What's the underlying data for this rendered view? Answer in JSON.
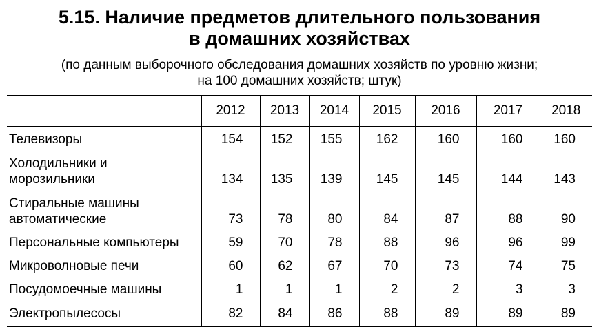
{
  "header": {
    "title_line1": "5.15. Наличие предметов длительного пользования",
    "title_line2": "в домашних хозяйствах",
    "subtitle_line1": "(по данным выборочного обследования домашних хозяйств по уровню жизни;",
    "subtitle_line2": "на 100 домашних хозяйств; штук)"
  },
  "table": {
    "columns": [
      "",
      "2012",
      "2013",
      "2014",
      "2015",
      "2016",
      "2017",
      "2018"
    ],
    "rows": [
      {
        "label": [
          "Телевизоры"
        ],
        "values": [
          "154",
          "152",
          "155",
          "162",
          "160",
          "160",
          "160"
        ]
      },
      {
        "label": [
          "Холодильники и",
          "морозильники"
        ],
        "values": [
          "134",
          "135",
          "139",
          "145",
          "145",
          "144",
          "143"
        ]
      },
      {
        "label": [
          "Стиральные машины",
          "автоматические"
        ],
        "values": [
          "73",
          "78",
          "80",
          "84",
          "87",
          "88",
          "90"
        ]
      },
      {
        "label": [
          "Персональные компьютеры"
        ],
        "values": [
          "59",
          "70",
          "78",
          "88",
          "96",
          "96",
          "99"
        ]
      },
      {
        "label": [
          "Микроволновые печи"
        ],
        "values": [
          "60",
          "62",
          "67",
          "70",
          "73",
          "74",
          "75"
        ]
      },
      {
        "label": [
          "Посудомоечные машины"
        ],
        "values": [
          "1",
          "1",
          "1",
          "2",
          "2",
          "3",
          "3"
        ]
      },
      {
        "label": [
          "Электропылесосы"
        ],
        "values": [
          "82",
          "84",
          "86",
          "88",
          "89",
          "89",
          "89"
        ]
      }
    ]
  }
}
